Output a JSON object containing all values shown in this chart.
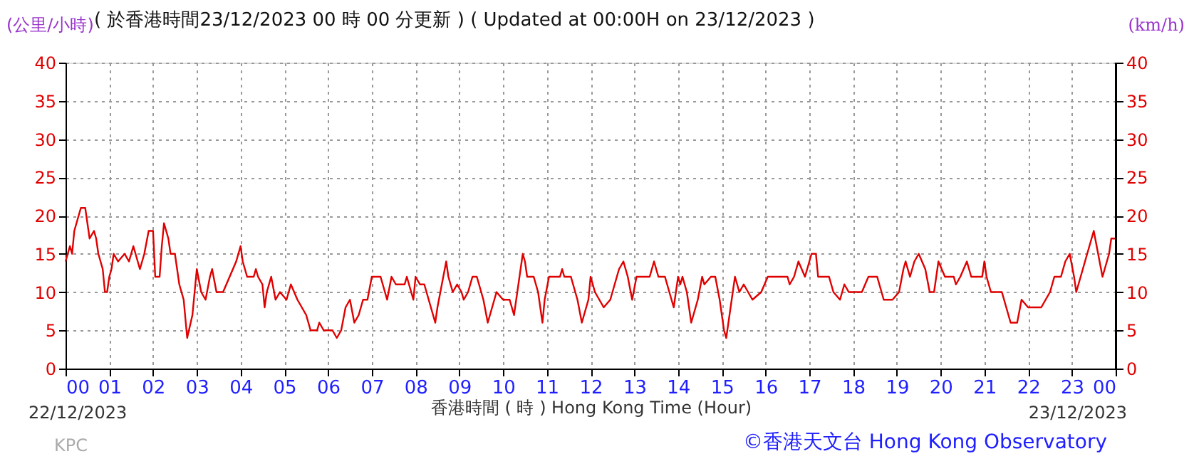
{
  "chart_data": {
    "type": "line",
    "title": "( 於香港時間23/12/2023 00 時 00 分更新 ) ( Updated at 00:00H on 23/12/2023 )",
    "xlabel": "香港時間 ( 時 )  Hong Kong Time (Hour)",
    "ylabel": "(公里/小時)",
    "y2label": "(km/h)",
    "annotations": [
      "22/12/2023",
      "23/12/2023",
      "KPC",
      "©香港天文台 Hong Kong Observatory"
    ],
    "x": [
      0,
      0.1,
      0.15,
      0.2,
      0.3,
      0.35,
      0.45,
      0.5,
      0.55,
      0.65,
      0.7,
      0.75,
      0.85,
      0.9,
      0.95,
      1.0,
      1.05,
      1.1,
      1.2,
      1.35,
      1.45,
      1.55,
      1.65,
      1.7,
      1.8,
      1.9,
      2.0,
      2.05,
      2.15,
      2.2,
      2.25,
      2.35,
      2.4,
      2.5,
      2.6,
      2.7,
      2.78,
      2.9,
      3.0,
      3.1,
      3.2,
      3.3,
      3.35,
      3.45,
      3.6,
      3.75,
      3.9,
      4.0,
      4.05,
      4.15,
      4.3,
      4.35,
      4.4,
      4.5,
      4.55,
      4.6,
      4.7,
      4.8,
      4.9,
      5.05,
      5.15,
      5.3,
      5.4,
      5.5,
      5.6,
      5.75,
      5.8,
      5.9,
      6.1,
      6.2,
      6.3,
      6.4,
      6.5,
      6.6,
      6.7,
      6.8,
      6.9,
      7.0,
      7.2,
      7.3,
      7.35,
      7.45,
      7.55,
      7.75,
      7.8,
      7.9,
      7.95,
      8.0,
      8.1,
      8.2,
      8.35,
      8.45,
      8.5,
      8.6,
      8.7,
      8.75,
      8.85,
      8.95,
      9.05,
      9.1,
      9.2,
      9.3,
      9.4,
      9.5,
      9.55,
      9.65,
      9.75,
      9.85,
      10.0,
      10.15,
      10.25,
      10.3,
      10.4,
      10.45,
      10.5,
      10.55,
      10.7,
      10.8,
      10.85,
      10.9,
      10.95,
      11.05,
      11.3,
      11.35,
      11.4,
      11.55,
      11.6,
      11.7,
      11.8,
      11.9,
      11.95,
      12.0,
      12.1,
      12.2,
      12.3,
      12.45,
      12.55,
      12.65,
      12.75,
      12.85,
      12.95,
      13.05,
      13.35,
      13.45,
      13.55,
      13.7,
      13.85,
      13.9,
      14.0,
      14.05,
      14.1,
      14.2,
      14.25,
      14.3,
      14.45,
      14.55,
      14.6,
      14.75,
      14.85,
      14.95,
      15.05,
      15.1,
      15.2,
      15.3,
      15.4,
      15.5,
      15.7,
      15.9,
      16.05,
      16.5,
      16.55,
      16.65,
      16.75,
      16.9,
      17.05,
      17.15,
      17.2,
      17.45,
      17.55,
      17.7,
      17.8,
      17.9,
      18.2,
      18.35,
      18.55,
      18.65,
      18.7,
      18.9,
      19.05,
      19.15,
      19.2,
      19.3,
      19.4,
      19.5,
      19.65,
      19.75,
      19.85,
      19.95,
      20.1,
      20.3,
      20.35,
      20.45,
      20.6,
      20.7,
      20.95,
      21.0,
      21.05,
      21.15,
      21.4,
      21.5,
      21.6,
      21.75,
      21.85,
      22.0,
      22.3,
      22.5,
      22.6,
      22.75,
      22.85,
      22.95,
      23.05,
      23.1,
      23.2,
      23.3,
      23.5,
      23.6,
      23.7,
      23.75,
      23.85,
      23.9,
      24.0
    ],
    "series": [
      {
        "color": "#e00000",
        "values": [
          14,
          16,
          15,
          18,
          20,
          21,
          21,
          19,
          17,
          18,
          17,
          15,
          13,
          10,
          10,
          12,
          13,
          15,
          14,
          15,
          14,
          16,
          14,
          13,
          15,
          18,
          18,
          12,
          12,
          16,
          19,
          17,
          15,
          15,
          11,
          9,
          4,
          7,
          13,
          10,
          9,
          12,
          13,
          10,
          10,
          12,
          14,
          16,
          14,
          12,
          12,
          13,
          12,
          11,
          8,
          10,
          12,
          9,
          10,
          9,
          11,
          9,
          8,
          7,
          5,
          5,
          6,
          5,
          5,
          4,
          5,
          8,
          9,
          6,
          7,
          9,
          9,
          12,
          12,
          10,
          9,
          12,
          11,
          11,
          12,
          10,
          9,
          12,
          11,
          11,
          8,
          6,
          8,
          11,
          14,
          12,
          10,
          11,
          10,
          9,
          10,
          12,
          12,
          10,
          9,
          6,
          8,
          10,
          9,
          9,
          7,
          9,
          13,
          15,
          14,
          12,
          12,
          10,
          8,
          6,
          9,
          12,
          12,
          13,
          12,
          12,
          11,
          9,
          6,
          8,
          9,
          12,
          10,
          9,
          8,
          9,
          11,
          13,
          14,
          12,
          9,
          12,
          12,
          14,
          12,
          12,
          9,
          8,
          12,
          11,
          12,
          10,
          8,
          6,
          9,
          12,
          11,
          12,
          12,
          9,
          5,
          4,
          8,
          12,
          10,
          11,
          9,
          10,
          12,
          12,
          11,
          12,
          14,
          12,
          15,
          15,
          12,
          12,
          10,
          9,
          11,
          10,
          10,
          12,
          12,
          10,
          9,
          9,
          10,
          13,
          14,
          12,
          14,
          15,
          13,
          10,
          10,
          14,
          12,
          12,
          11,
          12,
          14,
          12,
          12,
          14,
          12,
          10,
          10,
          8,
          6,
          6,
          9,
          8,
          8,
          10,
          12,
          12,
          14,
          15,
          12,
          10,
          12,
          14,
          18,
          15,
          12,
          13,
          15,
          17,
          17
        ]
      }
    ],
    "xlim": [
      0,
      24
    ],
    "xticks": [
      {
        "value": 0,
        "label": "00"
      },
      {
        "value": 1,
        "label": "01"
      },
      {
        "value": 2,
        "label": "02"
      },
      {
        "value": 3,
        "label": "03"
      },
      {
        "value": 4,
        "label": "04"
      },
      {
        "value": 5,
        "label": "05"
      },
      {
        "value": 6,
        "label": "06"
      },
      {
        "value": 7,
        "label": "07"
      },
      {
        "value": 8,
        "label": "08"
      },
      {
        "value": 9,
        "label": "09"
      },
      {
        "value": 10,
        "label": "10"
      },
      {
        "value": 11,
        "label": "11"
      },
      {
        "value": 12,
        "label": "12"
      },
      {
        "value": 13,
        "label": "13"
      },
      {
        "value": 14,
        "label": "14"
      },
      {
        "value": 15,
        "label": "15"
      },
      {
        "value": 16,
        "label": "16"
      },
      {
        "value": 17,
        "label": "17"
      },
      {
        "value": 18,
        "label": "18"
      },
      {
        "value": 19,
        "label": "19"
      },
      {
        "value": 20,
        "label": "20"
      },
      {
        "value": 21,
        "label": "21"
      },
      {
        "value": 22,
        "label": "22"
      },
      {
        "value": 23,
        "label": "23"
      },
      {
        "value": 24,
        "label": "00"
      }
    ],
    "ylim": [
      0,
      40
    ],
    "yticks": [
      0,
      5,
      10,
      15,
      20,
      25,
      30,
      35,
      40
    ],
    "y2lim": [
      0,
      40
    ],
    "y2ticks": [
      0,
      5,
      10,
      15,
      20,
      25,
      30,
      35,
      40
    ],
    "grid": true,
    "legend": false,
    "marker": "none",
    "line_style": "solid"
  }
}
